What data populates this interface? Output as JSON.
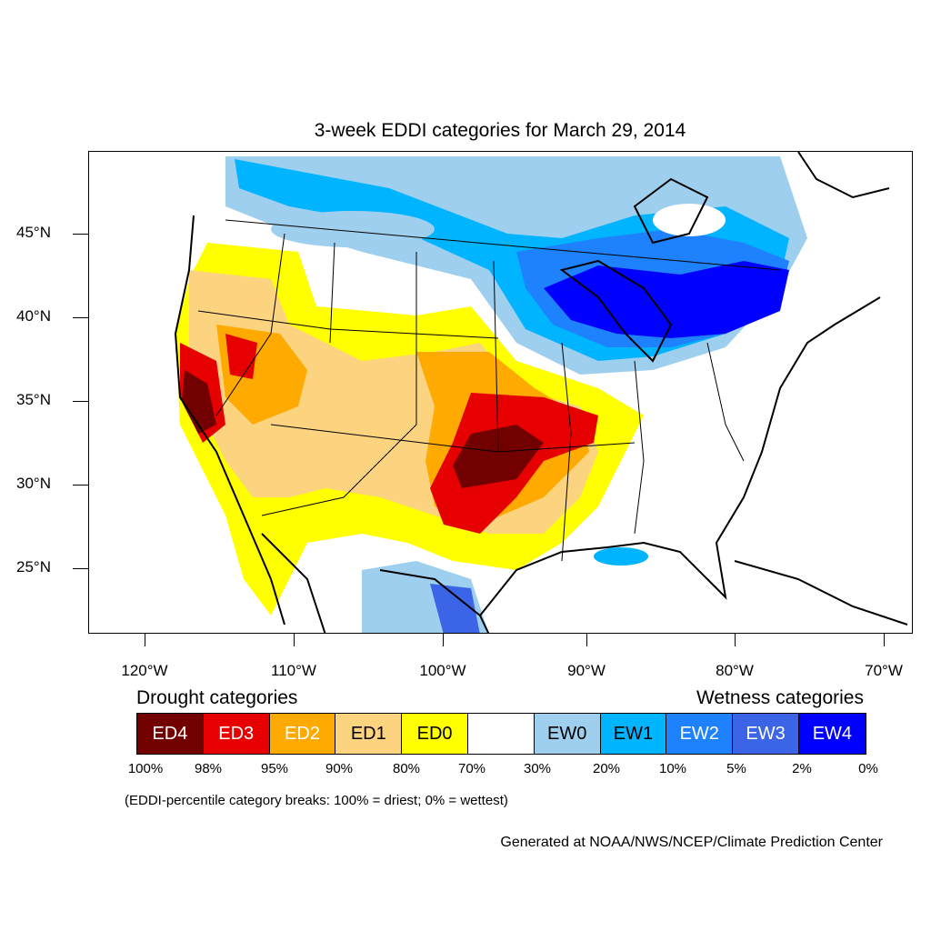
{
  "title": "3-week EDDI categories for March 29, 2014",
  "axes": {
    "lat_labels": [
      "45°N",
      "40°N",
      "35°N",
      "30°N",
      "25°N"
    ],
    "lon_labels": [
      "120°W",
      "110°W",
      "100°W",
      "90°W",
      "80°W",
      "70°W"
    ]
  },
  "legend": {
    "drought_heading": "Drought categories",
    "wetness_heading": "Wetness categories",
    "categories": [
      {
        "label": "ED4",
        "color": "#730000",
        "text_color": "#ffffff"
      },
      {
        "label": "ED3",
        "color": "#e60000",
        "text_color": "#ffffff"
      },
      {
        "label": "ED2",
        "color": "#ffaa00",
        "text_color": "#ffffff"
      },
      {
        "label": "ED1",
        "color": "#fcd37f",
        "text_color": "#000000"
      },
      {
        "label": "ED0",
        "color": "#ffff00",
        "text_color": "#000000"
      },
      {
        "label": "",
        "color": "#ffffff",
        "text_color": "#000000"
      },
      {
        "label": "EW0",
        "color": "#9ecfef",
        "text_color": "#000000"
      },
      {
        "label": "EW1",
        "color": "#00b4ff",
        "text_color": "#000000"
      },
      {
        "label": "EW2",
        "color": "#1e82ff",
        "text_color": "#ffffff"
      },
      {
        "label": "EW3",
        "color": "#3c64e6",
        "text_color": "#ffffff"
      },
      {
        "label": "EW4",
        "color": "#0000ff",
        "text_color": "#ffffff"
      }
    ],
    "breaks": [
      "100%",
      "98%",
      "95%",
      "90%",
      "80%",
      "70%",
      "30%",
      "20%",
      "10%",
      "5%",
      "2%",
      "0%"
    ]
  },
  "note": "(EDDI-percentile category breaks: 100% = driest; 0% = wettest)",
  "credit": "Generated at NOAA/NWS/NCEP/Climate Prediction Center"
}
